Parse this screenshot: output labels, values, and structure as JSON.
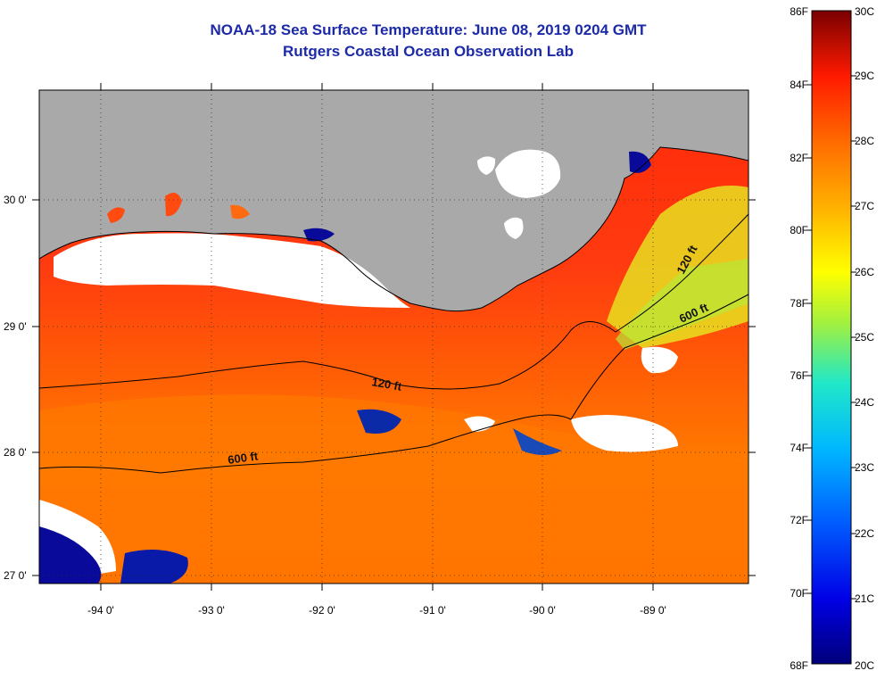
{
  "title": {
    "line1": "NOAA-18 Sea Surface Temperature:  June 08, 2019 0204 GMT",
    "line2": "Rutgers Coastal Ocean Observation Lab"
  },
  "axes": {
    "x_ticks": [
      "-94 0'",
      "-93 0'",
      "-92 0'",
      "-91 0'",
      "-90 0'",
      "-89 0'"
    ],
    "y_ticks": [
      "30 0'",
      "29 0'",
      "28 0'",
      "27 0'"
    ]
  },
  "contours": {
    "label_120_west": "120 ft",
    "label_600_west": "600 ft",
    "label_120_east": "120 ft",
    "label_600_east": "600 ft"
  },
  "colorbar": {
    "fahrenheit": [
      "86F",
      "84F",
      "82F",
      "80F",
      "78F",
      "76F",
      "74F",
      "72F",
      "70F",
      "68F"
    ],
    "celsius": [
      "30C",
      "29C",
      "28C",
      "27C",
      "26C",
      "25C",
      "24C",
      "23C",
      "22C",
      "21C",
      "20C"
    ]
  },
  "colors": {
    "land": "#a9a9a9",
    "cloud": "#ffffff",
    "sst_warm": "#ff3a10",
    "sst_mid": "#ff8a00",
    "title": "#1c2aa8"
  }
}
